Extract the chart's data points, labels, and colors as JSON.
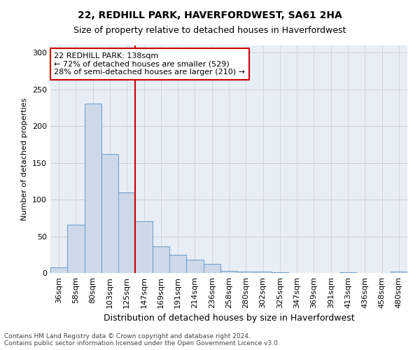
{
  "title1": "22, REDHILL PARK, HAVERFORDWEST, SA61 2HA",
  "title2": "Size of property relative to detached houses in Haverfordwest",
  "xlabel": "Distribution of detached houses by size in Haverfordwest",
  "ylabel": "Number of detached properties",
  "categories": [
    "36sqm",
    "58sqm",
    "80sqm",
    "103sqm",
    "125sqm",
    "147sqm",
    "169sqm",
    "191sqm",
    "214sqm",
    "236sqm",
    "258sqm",
    "280sqm",
    "302sqm",
    "325sqm",
    "347sqm",
    "369sqm",
    "391sqm",
    "413sqm",
    "436sqm",
    "458sqm",
    "480sqm"
  ],
  "values": [
    8,
    66,
    231,
    162,
    110,
    71,
    36,
    25,
    18,
    12,
    3,
    2,
    2,
    1,
    0,
    0,
    0,
    1,
    0,
    0,
    2
  ],
  "bar_color": "#cdd9e8",
  "bar_edge_color": "#6699cc",
  "vline_color": "#cc0000",
  "annotation_text": "22 REDHILL PARK: 138sqm\n← 72% of detached houses are smaller (529)\n28% of semi-detached houses are larger (210) →",
  "annotation_box_color": "#ffffff",
  "annotation_box_edge": "#cc0000",
  "ylim": [
    0,
    310
  ],
  "yticks": [
    0,
    50,
    100,
    150,
    200,
    250,
    300
  ],
  "grid_color": "#cccccc",
  "bg_color": "#e8eef5",
  "footnote": "Contains HM Land Registry data © Crown copyright and database right 2024.\nContains public sector information licensed under the Open Government Licence v3.0.",
  "title1_fontsize": 10,
  "title2_fontsize": 9,
  "xlabel_fontsize": 9,
  "ylabel_fontsize": 8,
  "tick_fontsize": 8,
  "annot_fontsize": 8,
  "footnote_fontsize": 6.5
}
